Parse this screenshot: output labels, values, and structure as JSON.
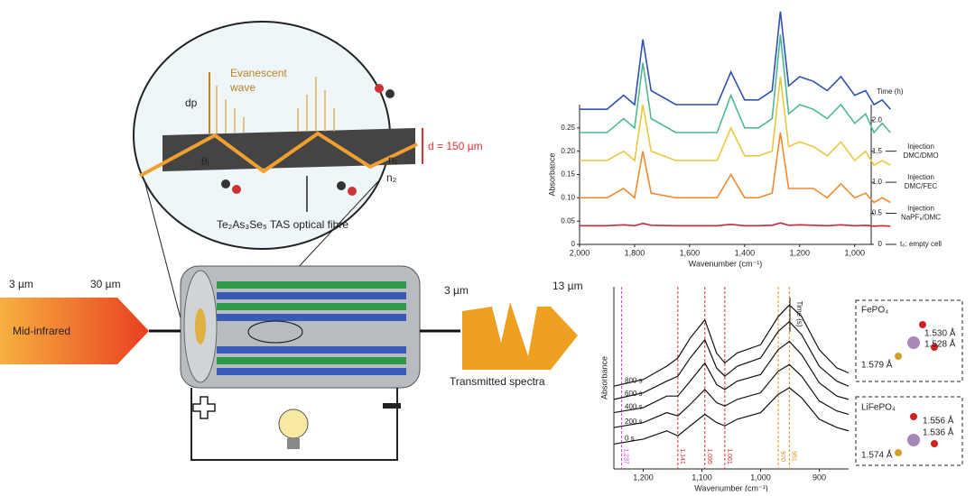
{
  "diagram": {
    "magnified": {
      "evanescent": "Evanescent",
      "wave": "wave",
      "dp": "dp",
      "angle": "θᵢ",
      "diameter": "d = 150 µm",
      "n1": "n₁",
      "n2": "n₂",
      "fibre": "Te₂As₃Se₅ TAS optical fibre"
    },
    "input": {
      "start": "3 µm",
      "end": "30 µm",
      "label": "Mid-infrared"
    },
    "output": {
      "start": "3 µm",
      "end": "13 µm",
      "label": "Transmitted spectra"
    },
    "insets": [
      {
        "title": "FePO₄",
        "bonds": [
          "1.530 Å",
          "1.528 Å",
          "1.579 Å"
        ]
      },
      {
        "title": "LiFePO₄",
        "bonds": [
          "1.556 Å",
          "1.536 Å",
          "1.574 Å"
        ]
      }
    ]
  },
  "chart_data": [
    {
      "type": "line",
      "x_label": "Wavenumber (cm⁻¹)",
      "y_label": "Absorbance",
      "y2_label": "Time (h)",
      "xlim": [
        2000,
        940
      ],
      "xticks": [
        {
          "value": 2000,
          "label": "2,000"
        },
        {
          "value": 1800,
          "label": "1,800"
        },
        {
          "value": 1600,
          "label": "1,600"
        },
        {
          "value": 1400,
          "label": "1,400"
        },
        {
          "value": 1200,
          "label": "1,200"
        },
        {
          "value": 1000,
          "label": "1,000"
        }
      ],
      "ylim": [
        0,
        0.3
      ],
      "yticks": [
        0,
        0.05,
        {
          "value": 0.1,
          "label": "0.10"
        },
        0.15,
        {
          "value": 0.2,
          "label": "0.20"
        },
        0.25
      ],
      "y2lim": [
        0,
        2.25
      ],
      "y2ticks": [
        0,
        0.5,
        {
          "value": 1,
          "label": "1.0"
        },
        1.5,
        {
          "value": 2,
          "label": "2.0"
        }
      ],
      "annotations": [
        {
          "at": 1.5,
          "lines": [
            "Injection",
            "DMC/DMO"
          ]
        },
        {
          "at": 1,
          "lines": [
            "Injection",
            "DMC/FEC"
          ]
        },
        {
          "at": 0.5,
          "lines": [
            "Injection",
            "NaPF₆/DMC"
          ]
        },
        {
          "at": 0,
          "lines": [
            "t₀: empty cell"
          ]
        }
      ],
      "x": [
        2000,
        1900,
        1840,
        1800,
        1770,
        1740,
        1650,
        1500,
        1450,
        1400,
        1350,
        1300,
        1270,
        1240,
        1200,
        1150,
        1100,
        1050,
        1000,
        960,
        930,
        900,
        870
      ],
      "series": [
        {
          "color": "#c8283c",
          "values": [
            0.04,
            0.04,
            0.042,
            0.04,
            0.045,
            0.041,
            0.04,
            0.04,
            0.043,
            0.04,
            0.04,
            0.041,
            0.046,
            0.041,
            0.042,
            0.041,
            0.04,
            0.042,
            0.04,
            0.041,
            0.039,
            0.04,
            0.039
          ]
        },
        {
          "color": "#f08a30",
          "values": [
            0.1,
            0.1,
            0.12,
            0.1,
            0.2,
            0.11,
            0.1,
            0.1,
            0.15,
            0.1,
            0.1,
            0.11,
            0.24,
            0.12,
            0.12,
            0.12,
            0.1,
            0.13,
            0.1,
            0.11,
            0.09,
            0.1,
            0.09
          ]
        },
        {
          "color": "#e8c840",
          "values": [
            0.18,
            0.18,
            0.2,
            0.18,
            0.3,
            0.2,
            0.18,
            0.18,
            0.25,
            0.19,
            0.19,
            0.2,
            0.36,
            0.21,
            0.22,
            0.21,
            0.19,
            0.22,
            0.18,
            0.2,
            0.17,
            0.18,
            0.17
          ]
        },
        {
          "color": "#50b890",
          "values": [
            0.24,
            0.24,
            0.27,
            0.25,
            0.39,
            0.27,
            0.24,
            0.24,
            0.32,
            0.25,
            0.25,
            0.27,
            0.45,
            0.28,
            0.3,
            0.29,
            0.27,
            0.3,
            0.26,
            0.28,
            0.24,
            0.26,
            0.24
          ]
        },
        {
          "color": "#3050b0",
          "values": [
            0.29,
            0.29,
            0.32,
            0.3,
            0.44,
            0.33,
            0.3,
            0.3,
            0.37,
            0.31,
            0.31,
            0.33,
            0.5,
            0.34,
            0.36,
            0.35,
            0.33,
            0.36,
            0.32,
            0.33,
            0.3,
            0.31,
            0.29
          ]
        }
      ]
    },
    {
      "type": "line",
      "x_label": "Wavenumber (cm⁻¹)",
      "y_label": "Absorbance",
      "time_label": "Time (s)",
      "xlim": [
        1250,
        850
      ],
      "xticks": [
        {
          "value": 1200,
          "label": "1,200"
        },
        {
          "value": 1100,
          "label": "1,100"
        },
        {
          "value": 1000,
          "label": "1,000"
        },
        900
      ],
      "ylim": [
        0,
        11
      ],
      "reference_lines": [
        {
          "value": 1237,
          "label": "1,237",
          "color": "#e040e0"
        },
        {
          "value": 1141,
          "label": "1,141",
          "color": "#d03030"
        },
        {
          "value": 1095,
          "label": "1,095",
          "color": "#d03030"
        },
        {
          "value": 1061,
          "label": "1,061",
          "color": "#d03030"
        },
        {
          "value": 970,
          "label": "970",
          "color": "#e09020"
        },
        {
          "value": 951,
          "label": "951",
          "color": "#e09020"
        }
      ],
      "x": [
        1250,
        1200,
        1160,
        1141,
        1120,
        1095,
        1075,
        1061,
        1040,
        1000,
        970,
        951,
        930,
        900,
        870,
        850
      ],
      "series": [
        {
          "name": "0 s",
          "color": "#111",
          "values": [
            1.5,
            1.8,
            2.3,
            2.0,
            2.6,
            3.3,
            2.8,
            2.6,
            3.0,
            3.4,
            4.5,
            4.9,
            4.3,
            3.0,
            2.5,
            2.3
          ]
        },
        {
          "name": "200 s",
          "color": "#111",
          "values": [
            2.5,
            2.8,
            3.4,
            3.2,
            3.9,
            4.8,
            4.0,
            3.8,
            4.2,
            4.6,
            5.9,
            6.3,
            5.6,
            4.1,
            3.5,
            3.3
          ]
        },
        {
          "name": "400 s",
          "color": "#111",
          "values": [
            3.4,
            3.7,
            4.4,
            4.4,
            5.3,
            6.4,
            5.1,
            4.8,
            5.3,
            5.7,
            7.2,
            7.7,
            6.9,
            5.2,
            4.4,
            4.2
          ]
        },
        {
          "name": "600 s",
          "color": "#111",
          "values": [
            4.2,
            4.6,
            5.3,
            5.6,
            6.7,
            7.8,
            6.1,
            5.6,
            6.2,
            6.7,
            8.3,
            8.9,
            8.1,
            6.2,
            5.3,
            5.0
          ]
        },
        {
          "name": "800 s",
          "color": "#111",
          "values": [
            5.0,
            5.4,
            6.2,
            6.7,
            7.9,
            9.0,
            7.0,
            6.4,
            7.0,
            7.5,
            9.2,
            9.9,
            9.2,
            7.2,
            6.1,
            5.8
          ]
        }
      ]
    }
  ]
}
